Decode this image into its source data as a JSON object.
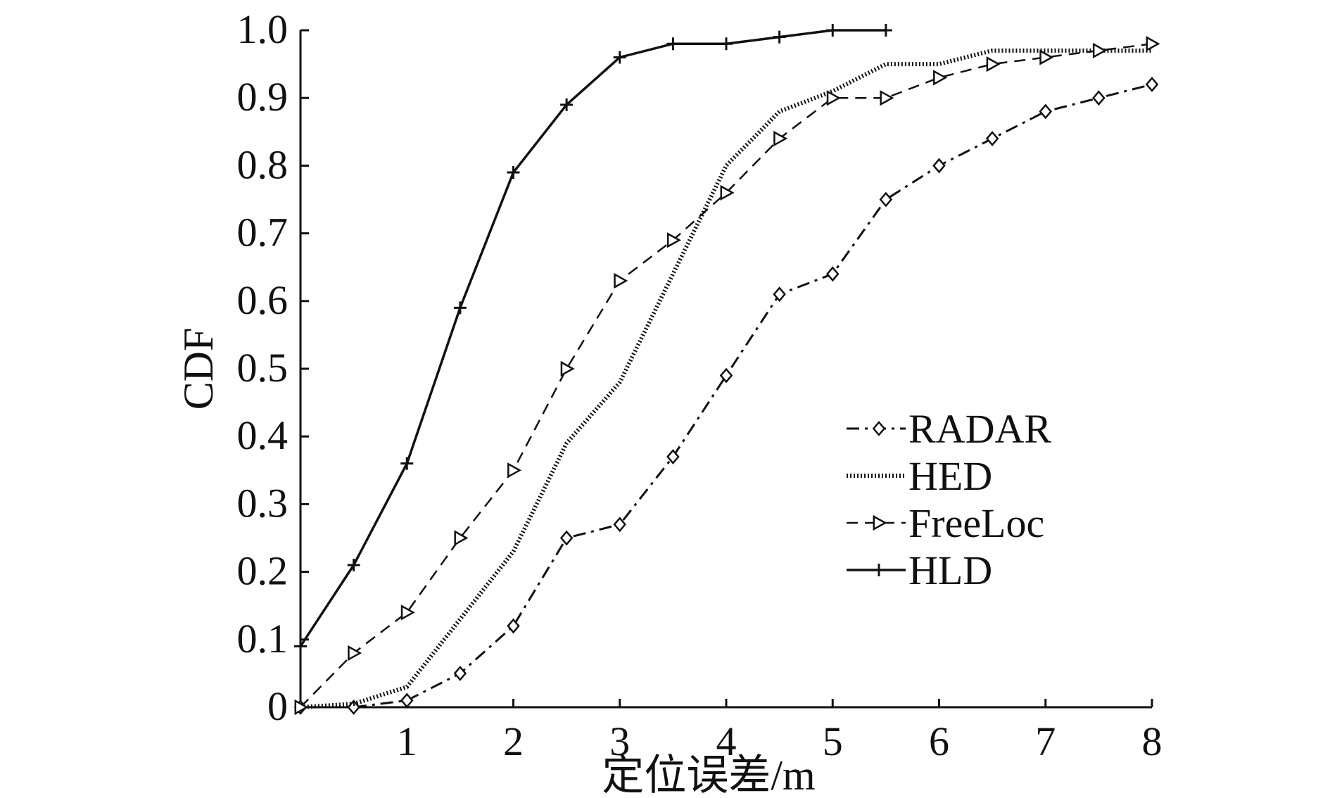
{
  "chart_data": {
    "type": "line",
    "xlabel": "定位误差/m",
    "ylabel": "CDF",
    "xlim": [
      0,
      8
    ],
    "ylim": [
      0,
      1.0
    ],
    "x_ticks": [
      1,
      2,
      3,
      4,
      5,
      6,
      7,
      8
    ],
    "x_tick_labels": [
      "1",
      "2",
      "3",
      "4",
      "5",
      "6",
      "7",
      "8"
    ],
    "y_ticks": [
      0,
      0.1,
      0.2,
      0.3,
      0.4,
      0.5,
      0.6,
      0.7,
      0.8,
      0.9,
      1.0
    ],
    "y_tick_labels": [
      "0",
      "0.1",
      "0.2",
      "0.3",
      "0.4",
      "0.5",
      "0.6",
      "0.7",
      "0.8",
      "0.9",
      "1.0"
    ],
    "grid": false,
    "legend_position": "center-right",
    "series": [
      {
        "name": "RADAR",
        "style": "dashdot",
        "marker": "diamond",
        "color": "#111111",
        "points": [
          [
            0,
            0
          ],
          [
            0.5,
            0
          ],
          [
            1,
            0.01
          ],
          [
            1.5,
            0.05
          ],
          [
            2,
            0.12
          ],
          [
            2.5,
            0.25
          ],
          [
            3,
            0.27
          ],
          [
            3.5,
            0.37
          ],
          [
            4,
            0.49
          ],
          [
            4.5,
            0.61
          ],
          [
            5,
            0.64
          ],
          [
            5.5,
            0.75
          ],
          [
            6,
            0.8
          ],
          [
            6.5,
            0.84
          ],
          [
            7,
            0.88
          ],
          [
            7.5,
            0.9
          ],
          [
            8,
            0.92
          ]
        ]
      },
      {
        "name": "HED",
        "style": "dotted",
        "marker": "none",
        "color": "#111111",
        "points": [
          [
            0,
            0
          ],
          [
            0.5,
            0.005
          ],
          [
            1,
            0.03
          ],
          [
            1.5,
            0.13
          ],
          [
            2,
            0.23
          ],
          [
            2.5,
            0.39
          ],
          [
            3,
            0.48
          ],
          [
            3.5,
            0.64
          ],
          [
            4,
            0.8
          ],
          [
            4.5,
            0.88
          ],
          [
            5,
            0.91
          ],
          [
            5.5,
            0.95
          ],
          [
            6,
            0.95
          ],
          [
            6.5,
            0.97
          ],
          [
            7,
            0.97
          ],
          [
            7.5,
            0.97
          ],
          [
            8,
            0.97
          ]
        ]
      },
      {
        "name": "FreeLoc",
        "style": "dashed",
        "marker": "triangle-right",
        "color": "#111111",
        "points": [
          [
            0,
            0
          ],
          [
            0.5,
            0.08
          ],
          [
            1,
            0.14
          ],
          [
            1.5,
            0.25
          ],
          [
            2,
            0.35
          ],
          [
            2.5,
            0.5
          ],
          [
            3,
            0.63
          ],
          [
            3.5,
            0.69
          ],
          [
            4,
            0.76
          ],
          [
            4.5,
            0.84
          ],
          [
            5,
            0.9
          ],
          [
            5.5,
            0.9
          ],
          [
            6,
            0.93
          ],
          [
            6.5,
            0.95
          ],
          [
            7,
            0.96
          ],
          [
            7.5,
            0.97
          ],
          [
            8,
            0.98
          ]
        ]
      },
      {
        "name": "HLD",
        "style": "solid",
        "marker": "plus",
        "color": "#111111",
        "points": [
          [
            0,
            0.09
          ],
          [
            0.5,
            0.21
          ],
          [
            1,
            0.36
          ],
          [
            1.5,
            0.59
          ],
          [
            2,
            0.79
          ],
          [
            2.5,
            0.89
          ],
          [
            3,
            0.96
          ],
          [
            3.5,
            0.98
          ],
          [
            4,
            0.98
          ],
          [
            4.5,
            0.99
          ],
          [
            5,
            1.0
          ],
          [
            5.5,
            1.0
          ]
        ]
      }
    ]
  }
}
